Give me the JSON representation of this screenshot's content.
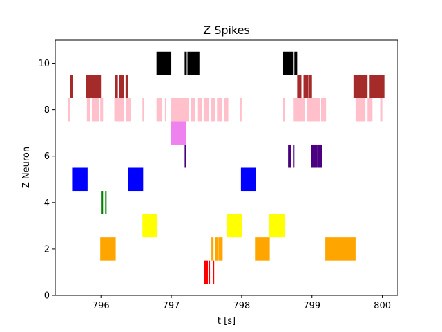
{
  "chart_data": {
    "type": "scatter",
    "title": "Z Spikes",
    "xlabel": "t [s]",
    "ylabel": "Z Neuron",
    "xlim": [
      795.35,
      800.22
    ],
    "ylim": [
      0,
      11
    ],
    "x_ticks": [
      796,
      797,
      798,
      799,
      800
    ],
    "y_ticks": [
      0,
      2,
      4,
      6,
      8,
      10
    ],
    "x_tick_labels": [
      "796",
      "797",
      "798",
      "799",
      "800"
    ],
    "y_tick_labels": [
      "0",
      "2",
      "4",
      "6",
      "8",
      "10"
    ],
    "grid": false,
    "legend": "none",
    "bar_height": 1,
    "series": [
      {
        "neuron": 1,
        "color": "#ff0000",
        "events": [
          [
            797.47,
            0.05
          ],
          [
            797.53,
            0.02
          ],
          [
            797.59,
            0.02
          ]
        ]
      },
      {
        "neuron": 2,
        "color": "#ffa500",
        "events": [
          [
            795.99,
            0.22
          ],
          [
            797.57,
            0.03
          ],
          [
            797.62,
            0.04
          ],
          [
            797.67,
            0.06
          ],
          [
            798.19,
            0.21
          ],
          [
            799.19,
            0.43
          ]
        ]
      },
      {
        "neuron": 3,
        "color": "#ffff00",
        "events": [
          [
            796.59,
            0.21
          ],
          [
            797.79,
            0.22
          ],
          [
            798.39,
            0.22
          ]
        ]
      },
      {
        "neuron": 4,
        "color": "#008000",
        "events": [
          [
            796.0,
            0.03
          ],
          [
            796.06,
            0.02
          ]
        ]
      },
      {
        "neuron": 5,
        "color": "#0000ff",
        "events": [
          [
            795.59,
            0.22
          ],
          [
            796.39,
            0.21
          ],
          [
            797.99,
            0.21
          ]
        ]
      },
      {
        "neuron": 6,
        "color": "#4b0082",
        "events": [
          [
            797.19,
            0.02
          ],
          [
            798.66,
            0.04
          ],
          [
            798.73,
            0.02
          ],
          [
            798.99,
            0.09
          ],
          [
            799.09,
            0.05
          ]
        ]
      },
      {
        "neuron": 7,
        "color": "#ee82ee",
        "events": [
          [
            796.99,
            0.22
          ]
        ]
      },
      {
        "neuron": 8,
        "color": "#ffc0cb",
        "events": [
          [
            795.53,
            0.03
          ],
          [
            795.8,
            0.05
          ],
          [
            795.87,
            0.07
          ],
          [
            795.94,
            0.03
          ],
          [
            795.99,
            0.04
          ],
          [
            796.19,
            0.14
          ],
          [
            796.36,
            0.06
          ],
          [
            796.59,
            0.02
          ],
          [
            796.79,
            0.08
          ],
          [
            796.91,
            0.02
          ],
          [
            797.0,
            0.2
          ],
          [
            797.19,
            0.06
          ],
          [
            797.28,
            0.06
          ],
          [
            797.37,
            0.07
          ],
          [
            797.46,
            0.07
          ],
          [
            797.56,
            0.06
          ],
          [
            797.65,
            0.07
          ],
          [
            797.75,
            0.06
          ],
          [
            797.98,
            0.02
          ],
          [
            798.59,
            0.03
          ],
          [
            798.73,
            0.17
          ],
          [
            798.93,
            0.13
          ],
          [
            799.06,
            0.06
          ],
          [
            799.13,
            0.07
          ],
          [
            799.62,
            0.14
          ],
          [
            799.79,
            0.07
          ],
          [
            799.97,
            0.03
          ]
        ]
      },
      {
        "neuron": 9,
        "color": "#a52a2a",
        "events": [
          [
            795.56,
            0.04
          ],
          [
            795.79,
            0.21
          ],
          [
            796.2,
            0.04
          ],
          [
            796.26,
            0.07
          ],
          [
            796.35,
            0.04
          ],
          [
            798.79,
            0.06
          ],
          [
            798.88,
            0.07
          ],
          [
            798.96,
            0.04
          ],
          [
            799.59,
            0.2
          ],
          [
            799.82,
            0.21
          ]
        ]
      },
      {
        "neuron": 10,
        "color": "#000000",
        "events": [
          [
            796.79,
            0.21
          ],
          [
            797.19,
            0.03
          ],
          [
            797.23,
            0.17
          ],
          [
            798.59,
            0.14
          ],
          [
            798.75,
            0.04
          ]
        ]
      }
    ]
  }
}
